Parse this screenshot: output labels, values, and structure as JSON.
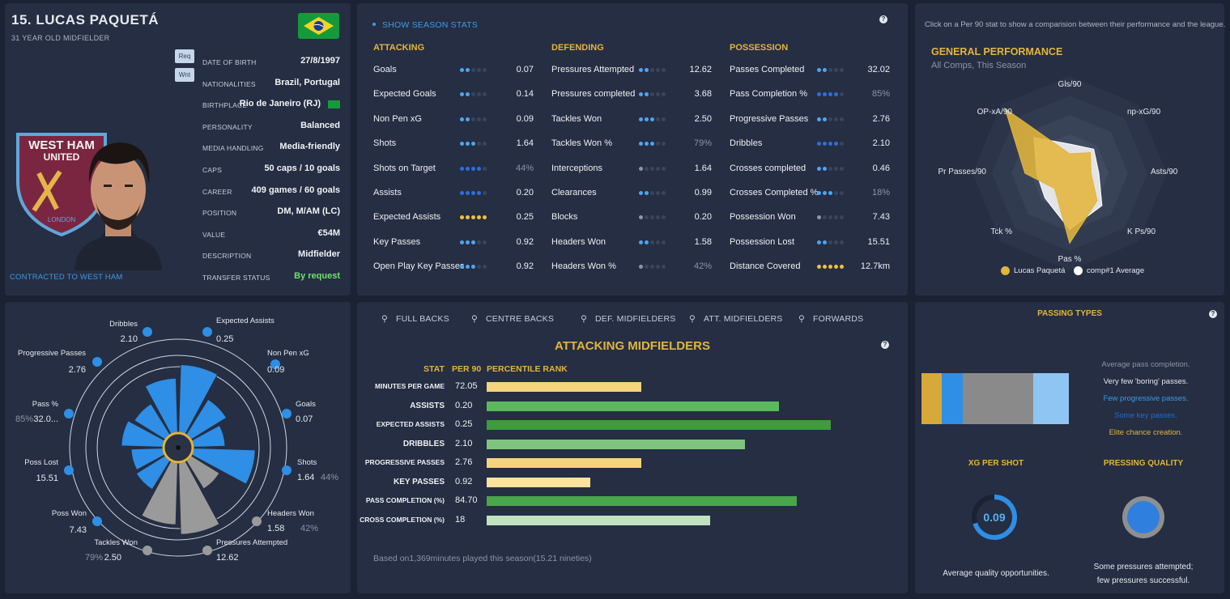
{
  "player": {
    "title": "15. LUCAS PAQUETÁ",
    "subtitle": "31 YEAR OLD MIDFIELDER",
    "tags": [
      "Req",
      "Wnt"
    ],
    "contract": "CONTRACTED TO WEST HAM",
    "crest_text_top": "WEST HAM",
    "crest_text_mid": "UNITED",
    "crest_text_bottom": "LONDON",
    "details": [
      {
        "key": "DATE OF BIRTH",
        "value": "27/8/1997"
      },
      {
        "key": "NATIONALITIES",
        "value": "Brazil, Portugal"
      },
      {
        "key": "BIRTHPLACE",
        "value": "Rio de Janeiro (RJ)"
      },
      {
        "key": "PERSONALITY",
        "value": "Balanced"
      },
      {
        "key": "MEDIA HANDLING",
        "value": "Media-friendly"
      },
      {
        "key": "CAPS",
        "value": "50 caps / 10 goals"
      },
      {
        "key": "CAREER",
        "value": "409 games / 60 goals"
      },
      {
        "key": "POSITION",
        "value": "DM, M/AM (LC)"
      },
      {
        "key": "VALUE",
        "value": "€54M"
      },
      {
        "key": "DESCRIPTION",
        "value": "Midfielder"
      },
      {
        "key": "TRANSFER STATUS",
        "value": "By request"
      }
    ],
    "colors": {
      "flag_green": "#159a3b",
      "flag_yellow": "#f5d423",
      "flag_blue": "#1b3c8e",
      "transfer_status": "#6ee46a"
    }
  },
  "season": {
    "toggle": "SHOW SEASON STATS",
    "columns": [
      {
        "title": "ATTACKING",
        "rows": [
          {
            "label": "Goals",
            "value": "0.07",
            "level": 2,
            "color": "blue",
            "dim": false
          },
          {
            "label": "Expected Goals",
            "value": "0.14",
            "level": 2,
            "color": "blue",
            "dim": false
          },
          {
            "label": "Non Pen xG",
            "value": "0.09",
            "level": 2,
            "color": "blue",
            "dim": false
          },
          {
            "label": "Shots",
            "value": "1.64",
            "level": 3,
            "color": "blue",
            "dim": false
          },
          {
            "label": "Shots on Target",
            "value": "44%",
            "level": 4,
            "color": "darkblue",
            "dim": true
          },
          {
            "label": "Assists",
            "value": "0.20",
            "level": 4,
            "color": "darkblue",
            "dim": false
          },
          {
            "label": "Expected Assists",
            "value": "0.25",
            "level": 5,
            "color": "gold",
            "dim": false
          },
          {
            "label": "Key Passes",
            "value": "0.92",
            "level": 3,
            "color": "blue",
            "dim": false
          },
          {
            "label": "Open Play Key Passes",
            "value": "0.92",
            "level": 3,
            "color": "blue",
            "dim": false
          }
        ]
      },
      {
        "title": "DEFENDING",
        "rows": [
          {
            "label": "Pressures Attempted",
            "value": "12.62",
            "level": 2,
            "color": "blue",
            "dim": false
          },
          {
            "label": "Pressures completed",
            "value": "3.68",
            "level": 2,
            "color": "blue",
            "dim": false
          },
          {
            "label": "Tackles Won",
            "value": "2.50",
            "level": 3,
            "color": "blue",
            "dim": false
          },
          {
            "label": "Tackles Won %",
            "value": "79%",
            "level": 3,
            "color": "blue",
            "dim": true
          },
          {
            "label": "Interceptions",
            "value": "1.64",
            "level": 1,
            "color": "grey",
            "dim": false
          },
          {
            "label": "Clearances",
            "value": "0.99",
            "level": 2,
            "color": "blue",
            "dim": false
          },
          {
            "label": "Blocks",
            "value": "0.20",
            "level": 1,
            "color": "grey",
            "dim": false
          },
          {
            "label": "Headers Won",
            "value": "1.58",
            "level": 2,
            "color": "blue",
            "dim": false
          },
          {
            "label": "Headers Won %",
            "value": "42%",
            "level": 1,
            "color": "grey",
            "dim": true
          }
        ]
      },
      {
        "title": "POSSESSION",
        "rows": [
          {
            "label": "Passes Completed",
            "value": "32.02",
            "level": 2,
            "color": "blue",
            "dim": false
          },
          {
            "label": "Pass Completion %",
            "value": "85%",
            "level": 4,
            "color": "darkblue",
            "dim": true
          },
          {
            "label": "Progressive Passes",
            "value": "2.76",
            "level": 2,
            "color": "blue",
            "dim": false
          },
          {
            "label": "Dribbles",
            "value": "2.10",
            "level": 4,
            "color": "darkblue",
            "dim": false
          },
          {
            "label": "Crosses completed",
            "value": "0.46",
            "level": 2,
            "color": "blue",
            "dim": false
          },
          {
            "label": "Crosses Completed %",
            "value": "18%",
            "level": 3,
            "color": "blue",
            "dim": true
          },
          {
            "label": "Possession Won",
            "value": "7.43",
            "level": 1,
            "color": "grey",
            "dim": false
          },
          {
            "label": "Possession Lost",
            "value": "15.51",
            "level": 2,
            "color": "blue",
            "dim": false
          },
          {
            "label": "Distance Covered",
            "value": "12.7km",
            "level": 5,
            "color": "gold",
            "dim": false
          }
        ]
      }
    ]
  },
  "general": {
    "note": "Click on a Per 90 stat to show a comparision between their performance and the league.",
    "title": "GENERAL PERFORMANCE",
    "subtitle": "All Comps, This Season",
    "axes": [
      "Gls/90",
      "np-xG/90",
      "Asts/90",
      "K Ps/90",
      "Pas %",
      "Tck %",
      "Pr Passes/90",
      "OP-xA/90"
    ],
    "player_values": [
      0.2,
      0.3,
      0.22,
      0.4,
      0.72,
      0.22,
      0.46,
      0.94
    ],
    "average_values": [
      0.3,
      0.35,
      0.3,
      0.47,
      0.58,
      0.36,
      0.34,
      0.52
    ],
    "legend": [
      "Lucas Paquetá",
      "comp#1 Average"
    ],
    "colors": {
      "player": "#e2b53c",
      "average": "#ffffff"
    }
  },
  "polar": {
    "segments": [
      {
        "label": "Expected Assists",
        "value": "0.25",
        "dim": "",
        "r": 0.9,
        "color": "blue"
      },
      {
        "label": "Non Pen xG",
        "value": "0.09",
        "dim": "",
        "r": 0.55,
        "color": "blue"
      },
      {
        "label": "Goals",
        "value": "0.07",
        "dim": "",
        "r": 0.42,
        "color": "blue"
      },
      {
        "label": "Shots",
        "value": "1.64",
        "dim": "44%",
        "r": 0.82,
        "color": "blue"
      },
      {
        "label": "Headers Won",
        "value": "1.58",
        "dim": "42%",
        "r": 0.44,
        "color": "grey"
      },
      {
        "label": "Pressures Attempted",
        "value": "12.62",
        "dim": "",
        "r": 0.95,
        "color": "grey"
      },
      {
        "label": "Tackles Won",
        "value": "2.50",
        "dim": "79%",
        "r": 0.82,
        "color": "grey"
      },
      {
        "label": "Poss Won",
        "value": "7.43",
        "dim": "",
        "r": 0.45,
        "color": "blue"
      },
      {
        "label": "Poss Lost",
        "value": "15.51",
        "dim": "",
        "r": 0.42,
        "color": "blue"
      },
      {
        "label": "Pass %",
        "value": "32.0...",
        "dim": "85%",
        "r": 0.55,
        "color": "blue"
      },
      {
        "label": "Progressive Passes",
        "value": "2.76",
        "dim": "",
        "r": 0.48,
        "color": "blue"
      },
      {
        "label": "Dribbles",
        "value": "2.10",
        "dim": "",
        "r": 0.72,
        "color": "blue"
      }
    ],
    "colors": {
      "blue": "#2f8ee6",
      "grey": "#9a9a9a",
      "dot_blue": "#2f8ee6",
      "dot_grey": "#9a9a9a"
    }
  },
  "percentile": {
    "tabs": [
      "FULL BACKS",
      "CENTRE BACKS",
      "DEF. MIDFIELDERS",
      "ATT. MIDFIELDERS",
      "FORWARDS"
    ],
    "title": "ATTACKING MIDFIELDERS",
    "headers": [
      "STAT",
      "PER 90",
      "PERCENTILE RANK"
    ],
    "rows": [
      {
        "label": "MINUTES PER GAME",
        "value": "72.05",
        "pct": 45,
        "color": "#f6d37d",
        "big": false
      },
      {
        "label": "ASSISTS",
        "value": "0.20",
        "pct": 85,
        "color": "#5cb85c",
        "big": true
      },
      {
        "label": "EXPECTED ASSISTS",
        "value": "0.25",
        "pct": 100,
        "color": "#3e9b40",
        "big": false
      },
      {
        "label": "DRIBBLES",
        "value": "2.10",
        "pct": 75,
        "color": "#7ec47e",
        "big": true
      },
      {
        "label": "PROGRESSIVE PASSES",
        "value": "2.76",
        "pct": 45,
        "color": "#f6d37d",
        "big": false
      },
      {
        "label": "KEY PASSES",
        "value": "0.92",
        "pct": 30,
        "color": "#fbe39f",
        "big": true
      },
      {
        "label": "PASS COMPLETION (%)",
        "value": "84.70",
        "pct": 90,
        "color": "#4aa64a",
        "big": false
      },
      {
        "label": "CROSS COMPLETION (%)",
        "value": "18",
        "pct": 65,
        "color": "#bfe3bf",
        "big": false
      }
    ],
    "footer": "Based on1,369minutes played this season(15.21 nineties)"
  },
  "passing": {
    "title": "PASSING TYPES",
    "segments": [
      {
        "share": 0.14,
        "color": "#d6a93a"
      },
      {
        "share": 0.14,
        "color": "#2f8ee6"
      },
      {
        "share": 0.48,
        "color": "#8a8a8a"
      },
      {
        "share": 0.24,
        "color": "#8fc5f2"
      }
    ],
    "notes": [
      {
        "text": "Average pass completion.",
        "color": "#8d95a6"
      },
      {
        "text": "Very few 'boring' passes.",
        "color": "#e6e9ef"
      },
      {
        "text": "Few progressive passes.",
        "color": "#3e9ae8"
      },
      {
        "text": "Some key passes.",
        "color": "#1f6fd1"
      },
      {
        "text": "Elite chance creation.",
        "color": "#e2b53c"
      }
    ],
    "xg": {
      "title": "XG PER SHOT",
      "value": "0.09",
      "desc": "Average quality opportunities.",
      "fill": 0.7
    },
    "pressing": {
      "title": "PRESSING QUALITY",
      "desc1": "Some pressures attempted;",
      "desc2": "few pressures successful."
    }
  }
}
